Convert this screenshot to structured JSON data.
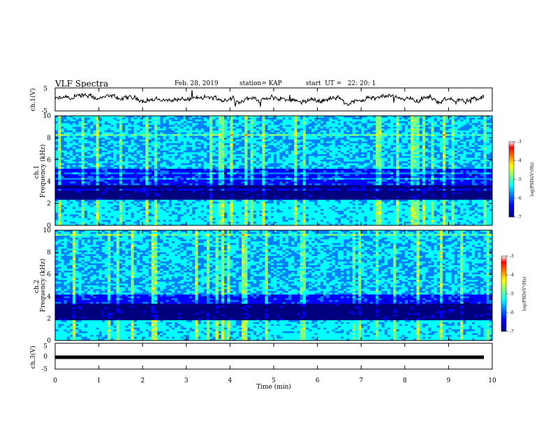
{
  "header": {
    "title": "VLF Spectra",
    "date": "Feb. 28, 2019",
    "station": "station= KAP",
    "start": "start  UT =   22: 20: 1"
  },
  "chart_data": [
    {
      "type": "line",
      "panel": "ch1-waveform",
      "ylabel": "ch.1(V)",
      "ylim": [
        -5,
        5
      ],
      "yticks": [
        "5",
        "-5"
      ],
      "xlim": [
        0,
        10
      ],
      "series_color": "#000000"
    },
    {
      "type": "heatmap",
      "panel": "ch1-spectrogram",
      "ylabel": "ch.1\nFrequency  (kHz)",
      "ylim": [
        0,
        10
      ],
      "yticks": [
        "0",
        "2",
        "4",
        "6",
        "8",
        "10"
      ],
      "xlim": [
        0,
        10
      ],
      "colorbar": {
        "label": "log(PSD)(V²/Hz)",
        "range": [
          -7,
          -3
        ],
        "ticks": [
          "-3",
          "-4",
          "-5",
          "-6",
          "-7"
        ]
      },
      "bands_khz": [
        {
          "from": 0,
          "to": 2.2,
          "level": "high (cyan/green)"
        },
        {
          "from": 2.3,
          "to": 3.6,
          "level": "very low (dark blue)"
        },
        {
          "from": 3.6,
          "to": 5.2,
          "level": "low (blue)"
        },
        {
          "from": 5.2,
          "to": 10,
          "level": "mid (cyan/green, vertical streaks)"
        }
      ]
    },
    {
      "type": "heatmap",
      "panel": "ch2-spectrogram",
      "ylabel": "ch.2\nFrequency  (kHz)",
      "ylim": [
        0,
        10
      ],
      "yticks": [
        "0",
        "2",
        "4",
        "6",
        "8",
        "10"
      ],
      "xlim": [
        0,
        10
      ],
      "colorbar": {
        "label": "log(PSD)(V²/Hz)",
        "range": [
          -7,
          -3
        ],
        "ticks": [
          "-3",
          "-4",
          "-5",
          "-6",
          "-7"
        ]
      },
      "bands_khz": [
        {
          "from": 0,
          "to": 1.8,
          "level": "high (cyan)"
        },
        {
          "from": 1.8,
          "to": 3.3,
          "level": "very low (dark blue)"
        },
        {
          "from": 3.3,
          "to": 4.2,
          "level": "low (blue)"
        },
        {
          "from": 4.2,
          "to": 10,
          "level": "mid (cyan/green, vertical streaks)"
        }
      ]
    },
    {
      "type": "line",
      "panel": "ch3-waveform",
      "ylabel": "ch.3(V)",
      "ylim": [
        -5,
        5
      ],
      "yticks": [
        "5",
        "0",
        "-5"
      ],
      "xlim": [
        0,
        10
      ],
      "xlabel": "Time  (min)",
      "xticks": [
        "0",
        "1",
        "2",
        "3",
        "4",
        "5",
        "6",
        "7",
        "8",
        "9",
        "10"
      ],
      "constant_value": 0
    }
  ],
  "colors": {
    "colormap": [
      "#00007f",
      "#0000ff",
      "#0080ff",
      "#00ffff",
      "#80ff80",
      "#ffff00",
      "#ff8000",
      "#ff0000",
      "#ffffff"
    ]
  }
}
